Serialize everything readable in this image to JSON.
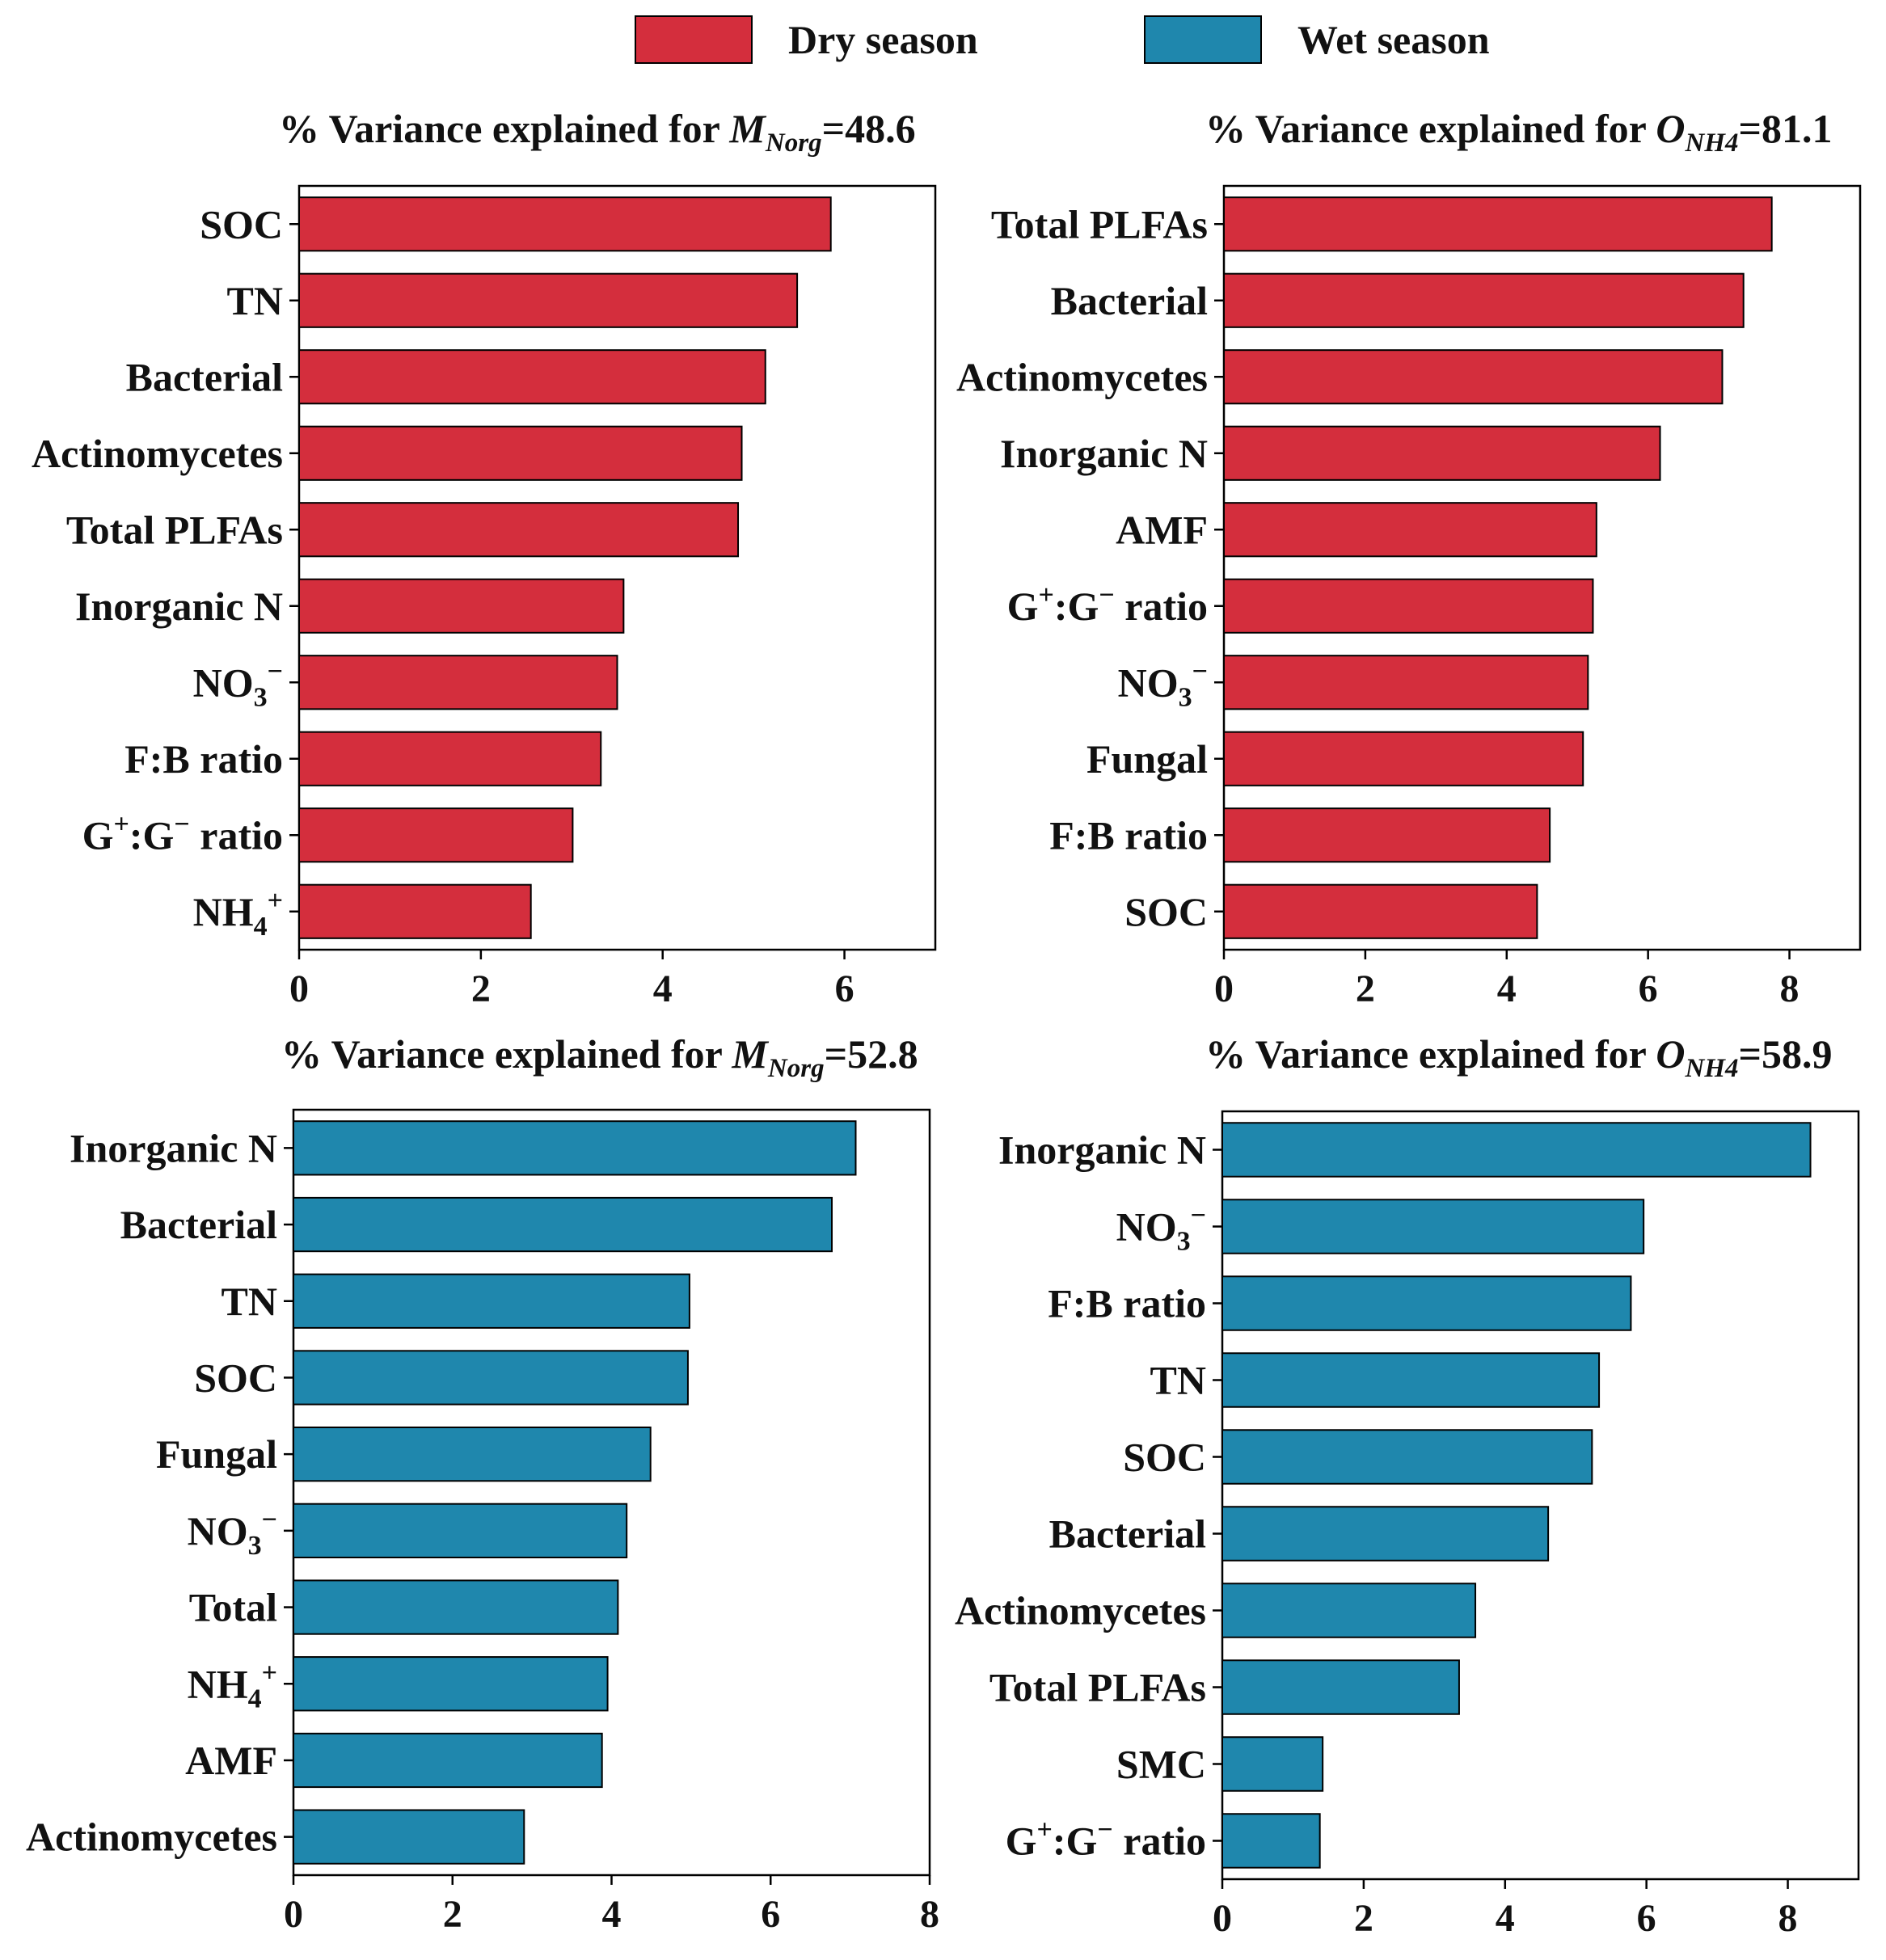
{
  "colors": {
    "dry": "#d42e3d",
    "wet": "#1f87ad"
  },
  "legend": [
    {
      "label": "Dry season",
      "color": "#d42e3d"
    },
    {
      "label": "Wet season",
      "color": "#1f87ad"
    }
  ],
  "chart_data": [
    {
      "type": "bar",
      "orientation": "horizontal",
      "season": "Dry season",
      "title": {
        "prefix": "% Variance explained for ",
        "var": "M",
        "sub": "Norg",
        "suffix": "=48.6"
      },
      "categories": [
        "SOC",
        "TN",
        "Bacterial",
        "Actinomycetes",
        "Total PLFAs",
        "Inorganic N",
        "NO3−",
        "F:B ratio",
        "G+:G− ratio",
        "NH4+"
      ],
      "values": [
        5.85,
        5.48,
        5.13,
        4.87,
        4.83,
        3.57,
        3.5,
        3.32,
        3.01,
        2.55
      ],
      "xlim": [
        0,
        7
      ],
      "xticks": [
        0,
        2,
        4,
        6
      ],
      "xtick_labels": [
        "0",
        "2",
        "4",
        "6"
      ]
    },
    {
      "type": "bar",
      "orientation": "horizontal",
      "season": "Dry season",
      "title": {
        "prefix": "% Variance explained for ",
        "var": "O",
        "sub": "NH4",
        "suffix": "=81.1"
      },
      "categories": [
        "Total PLFAs",
        "Bacterial",
        "Actinomycetes",
        "Inorganic N",
        "AMF",
        "G+:G− ratio",
        "NO3−",
        "Fungal",
        "F:B ratio",
        "SOC"
      ],
      "values": [
        7.75,
        7.35,
        7.05,
        6.17,
        5.27,
        5.22,
        5.15,
        5.08,
        4.61,
        4.43
      ],
      "xlim": [
        0,
        9
      ],
      "xticks": [
        0,
        2,
        4,
        6,
        8
      ],
      "xtick_labels": [
        "0",
        "2",
        "4",
        "6",
        "8"
      ]
    },
    {
      "type": "bar",
      "orientation": "horizontal",
      "season": "Wet season",
      "title": {
        "prefix": "% Variance explained for ",
        "var": "M",
        "sub": "Norg",
        "suffix": "=52.8"
      },
      "categories": [
        "Inorganic N",
        "Bacterial",
        "TN",
        "SOC",
        "Fungal",
        "NO3−",
        "Total",
        "NH4+",
        "AMF",
        "Actinomycetes"
      ],
      "values": [
        7.07,
        6.77,
        4.98,
        4.96,
        4.49,
        4.19,
        4.08,
        3.95,
        3.88,
        2.9
      ],
      "xlim": [
        0,
        8
      ],
      "xticks": [
        0,
        2,
        4,
        6,
        8
      ],
      "xtick_labels": [
        "0",
        "2",
        "4",
        "6",
        "8"
      ]
    },
    {
      "type": "bar",
      "orientation": "horizontal",
      "season": "Wet season",
      "title": {
        "prefix": "% Variance explained for ",
        "var": "O",
        "sub": "NH4",
        "suffix": "=58.9"
      },
      "categories": [
        "Inorganic N",
        "NO3−",
        "F:B ratio",
        "TN",
        "SOC",
        "Bacterial",
        "Actinomycetes",
        "Total PLFAs",
        "SMC",
        "G+:G− ratio"
      ],
      "values": [
        8.32,
        5.96,
        5.78,
        5.33,
        5.23,
        4.61,
        3.58,
        3.35,
        1.42,
        1.38
      ],
      "xlim": [
        0,
        9
      ],
      "xticks": [
        0,
        2,
        4,
        6,
        8
      ],
      "xtick_labels": [
        "0",
        "2",
        "4",
        "6",
        "8"
      ]
    }
  ]
}
